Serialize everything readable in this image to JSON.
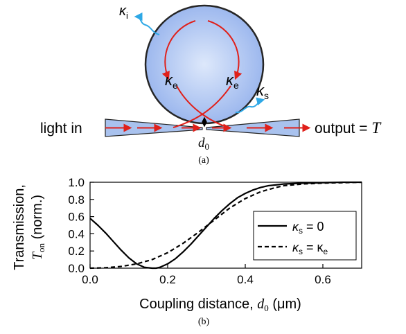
{
  "diagram": {
    "kappa_i_label": "κ",
    "kappa_i_sub": "i",
    "kappa_e_label": "κ",
    "kappa_e_sub": "e",
    "kappa_s_label": "κ",
    "kappa_s_sub": "s",
    "light_in_label": "light in",
    "output_label": "output = ",
    "output_symbol": "T",
    "gap_label": "d",
    "gap_sub": "0",
    "caption": "(a)",
    "colors": {
      "ring_fill_center": "#dde8fb",
      "ring_fill_edge": "#9db8ee",
      "ring_stroke": "#262626",
      "arrow_red": "#e0201a",
      "loss_blue": "#2ea8e6",
      "waveguide_fill": "#a9c2ee"
    }
  },
  "chart_data": {
    "type": "line",
    "ylabel_line1": "Transmission,",
    "ylabel_symbol": "T",
    "ylabel_sub": "on",
    "ylabel_unit": " (norm.)",
    "xlabel_prefix": "Coupling distance, ",
    "xlabel_symbol": "d",
    "xlabel_sub": "0",
    "xlabel_unit": "  (μm)",
    "caption": "(b)",
    "xlim": [
      0,
      0.7
    ],
    "ylim": [
      0,
      1.0
    ],
    "xticks": [
      "0.0",
      "0.2",
      "0.4",
      "0.6"
    ],
    "xtick_values": [
      0,
      0.2,
      0.4,
      0.6
    ],
    "yticks": [
      "0.0",
      "0.2",
      "0.4",
      "0.6",
      "0.8",
      "1.0"
    ],
    "ytick_values": [
      0,
      0.2,
      0.4,
      0.6,
      0.8,
      1.0
    ],
    "legend_position": "center-right",
    "series": [
      {
        "legend_kappa": "κ",
        "legend_sub": "s",
        "legend_rhs": " = 0",
        "legend_rhs_sub": "",
        "style": "solid",
        "x": [
          0,
          0.02,
          0.04,
          0.06,
          0.08,
          0.1,
          0.12,
          0.14,
          0.16,
          0.17,
          0.18,
          0.2,
          0.22,
          0.24,
          0.26,
          0.28,
          0.3,
          0.32,
          0.34,
          0.36,
          0.38,
          0.4,
          0.42,
          0.44,
          0.46,
          0.48,
          0.5,
          0.55,
          0.6,
          0.65,
          0.7
        ],
        "y": [
          0.58,
          0.5,
          0.41,
          0.31,
          0.21,
          0.12,
          0.05,
          0.01,
          0.0,
          0.0,
          0.01,
          0.05,
          0.11,
          0.19,
          0.28,
          0.38,
          0.48,
          0.58,
          0.67,
          0.75,
          0.82,
          0.87,
          0.91,
          0.94,
          0.96,
          0.97,
          0.98,
          0.99,
          0.995,
          1.0,
          1.0
        ]
      },
      {
        "legend_kappa": "κ",
        "legend_sub": "s",
        "legend_rhs": " = κ",
        "legend_rhs_sub": "e",
        "style": "dashed",
        "x": [
          0,
          0.04,
          0.08,
          0.12,
          0.16,
          0.2,
          0.24,
          0.28,
          0.32,
          0.36,
          0.4,
          0.44,
          0.48,
          0.5,
          0.55,
          0.6,
          0.65,
          0.7
        ],
        "y": [
          0.0,
          0.005,
          0.02,
          0.05,
          0.1,
          0.18,
          0.29,
          0.42,
          0.56,
          0.7,
          0.81,
          0.89,
          0.94,
          0.96,
          0.98,
          0.99,
          0.995,
          1.0
        ]
      }
    ]
  }
}
